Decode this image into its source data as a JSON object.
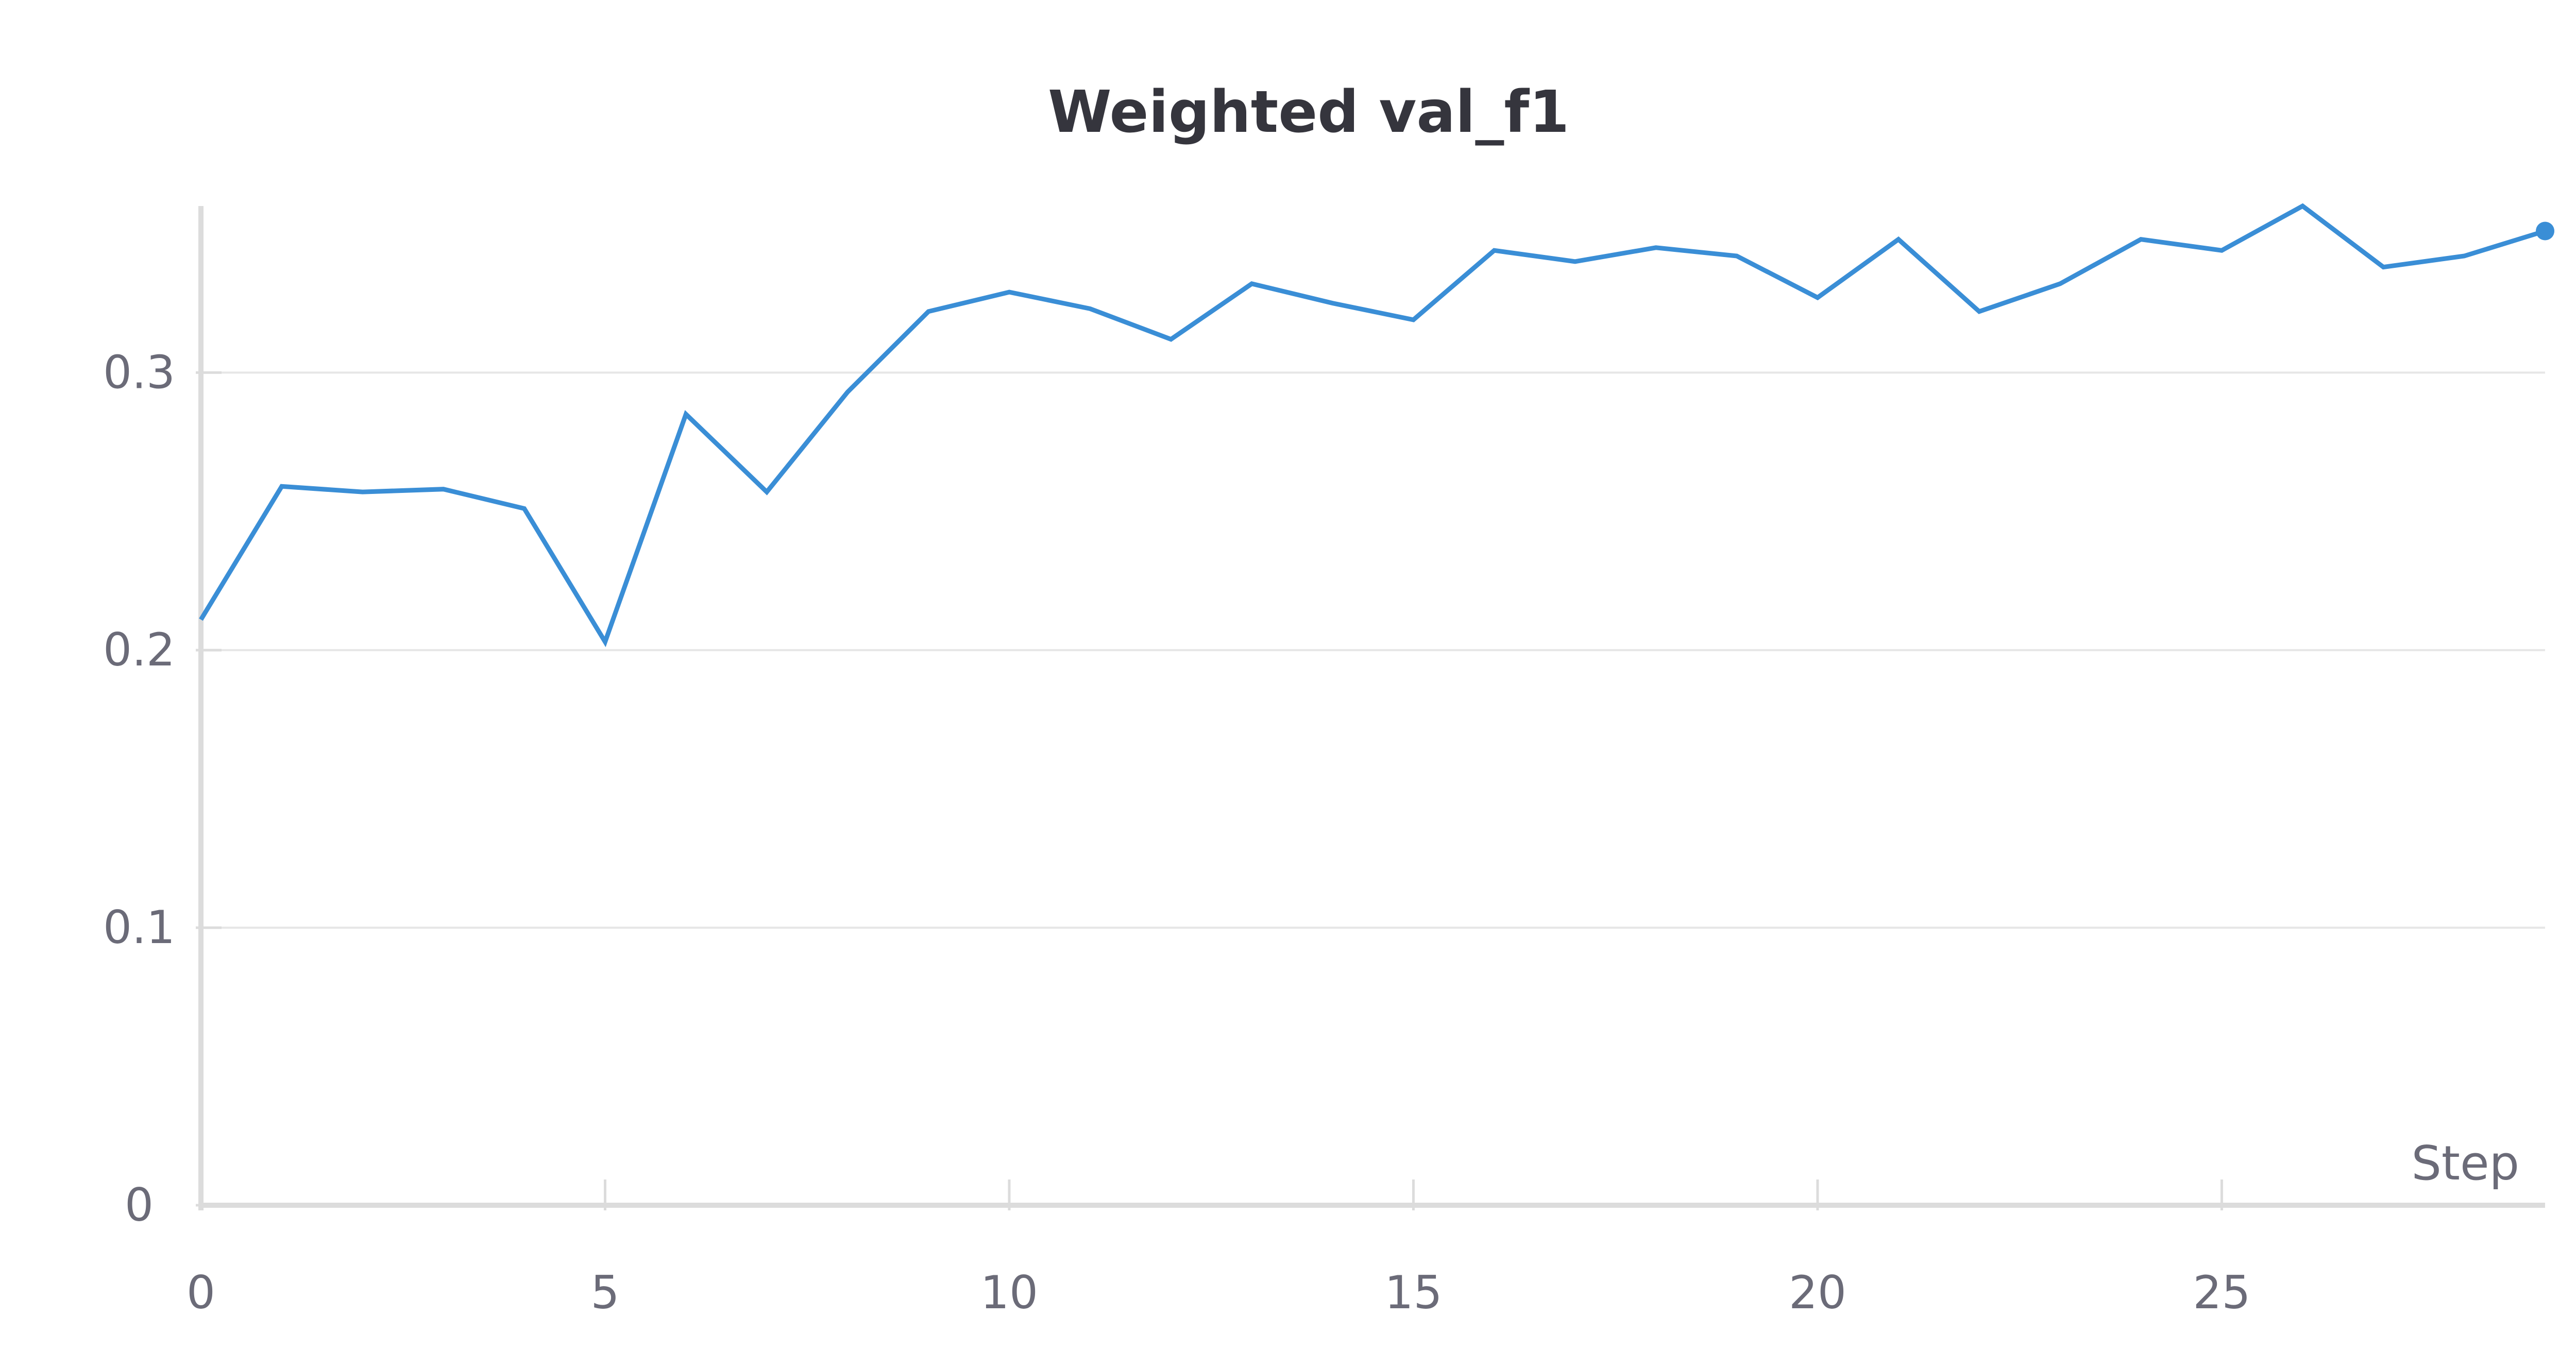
{
  "chart_data": {
    "type": "line",
    "title": "Weighted val_f1",
    "xlabel": "Step",
    "ylabel": "",
    "xlim": [
      0,
      29
    ],
    "ylim": [
      0,
      0.36
    ],
    "x_ticks": [
      "0",
      "5",
      "10",
      "15",
      "20",
      "25"
    ],
    "y_ticks": [
      "0",
      "0.1",
      "0.2",
      "0.3"
    ],
    "grid": true,
    "series": [
      {
        "color": "#3a8ed6",
        "x": [
          0,
          1,
          2,
          3,
          4,
          5,
          6,
          7,
          8,
          9,
          10,
          11,
          12,
          13,
          14,
          15,
          16,
          17,
          18,
          19,
          20,
          21,
          22,
          23,
          24,
          25,
          26,
          27,
          28,
          29
        ],
        "values": [
          0.211,
          0.259,
          0.257,
          0.258,
          0.251,
          0.203,
          0.285,
          0.257,
          0.293,
          0.322,
          0.329,
          0.323,
          0.312,
          0.332,
          0.325,
          0.319,
          0.344,
          0.34,
          0.345,
          0.342,
          0.327,
          0.348,
          0.322,
          0.332,
          0.348,
          0.344,
          0.36,
          0.338,
          0.342,
          0.351
        ]
      }
    ]
  }
}
